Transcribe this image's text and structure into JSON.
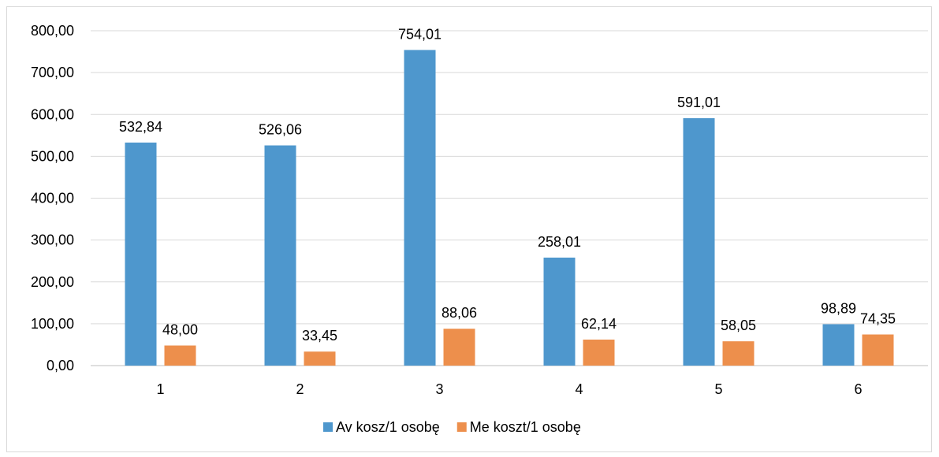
{
  "chart_data": {
    "type": "bar",
    "categories": [
      "1",
      "2",
      "3",
      "4",
      "5",
      "6"
    ],
    "series": [
      {
        "name": "Av kosz/1 osobę",
        "color": "#4e97cd",
        "values": [
          532.84,
          526.06,
          754.01,
          258.01,
          591.01,
          98.89
        ],
        "labels": [
          "532,84",
          "526,06",
          "754,01",
          "258,01",
          "591,01",
          "98,89"
        ]
      },
      {
        "name": "Me koszt/1 osobę",
        "color": "#ed8f4c",
        "values": [
          48.0,
          33.45,
          88.06,
          62.14,
          58.05,
          74.35
        ],
        "labels": [
          "48,00",
          "33,45",
          "88,06",
          "62,14",
          "58,05",
          "74,35"
        ]
      }
    ],
    "ylim": [
      0,
      800
    ],
    "yticks": [
      0,
      100,
      200,
      300,
      400,
      500,
      600,
      700,
      800
    ],
    "ytick_labels": [
      "0,00",
      "100,00",
      "200,00",
      "300,00",
      "400,00",
      "500,00",
      "600,00",
      "700,00",
      "800,00"
    ],
    "grid": true,
    "legend_position": "bottom"
  }
}
